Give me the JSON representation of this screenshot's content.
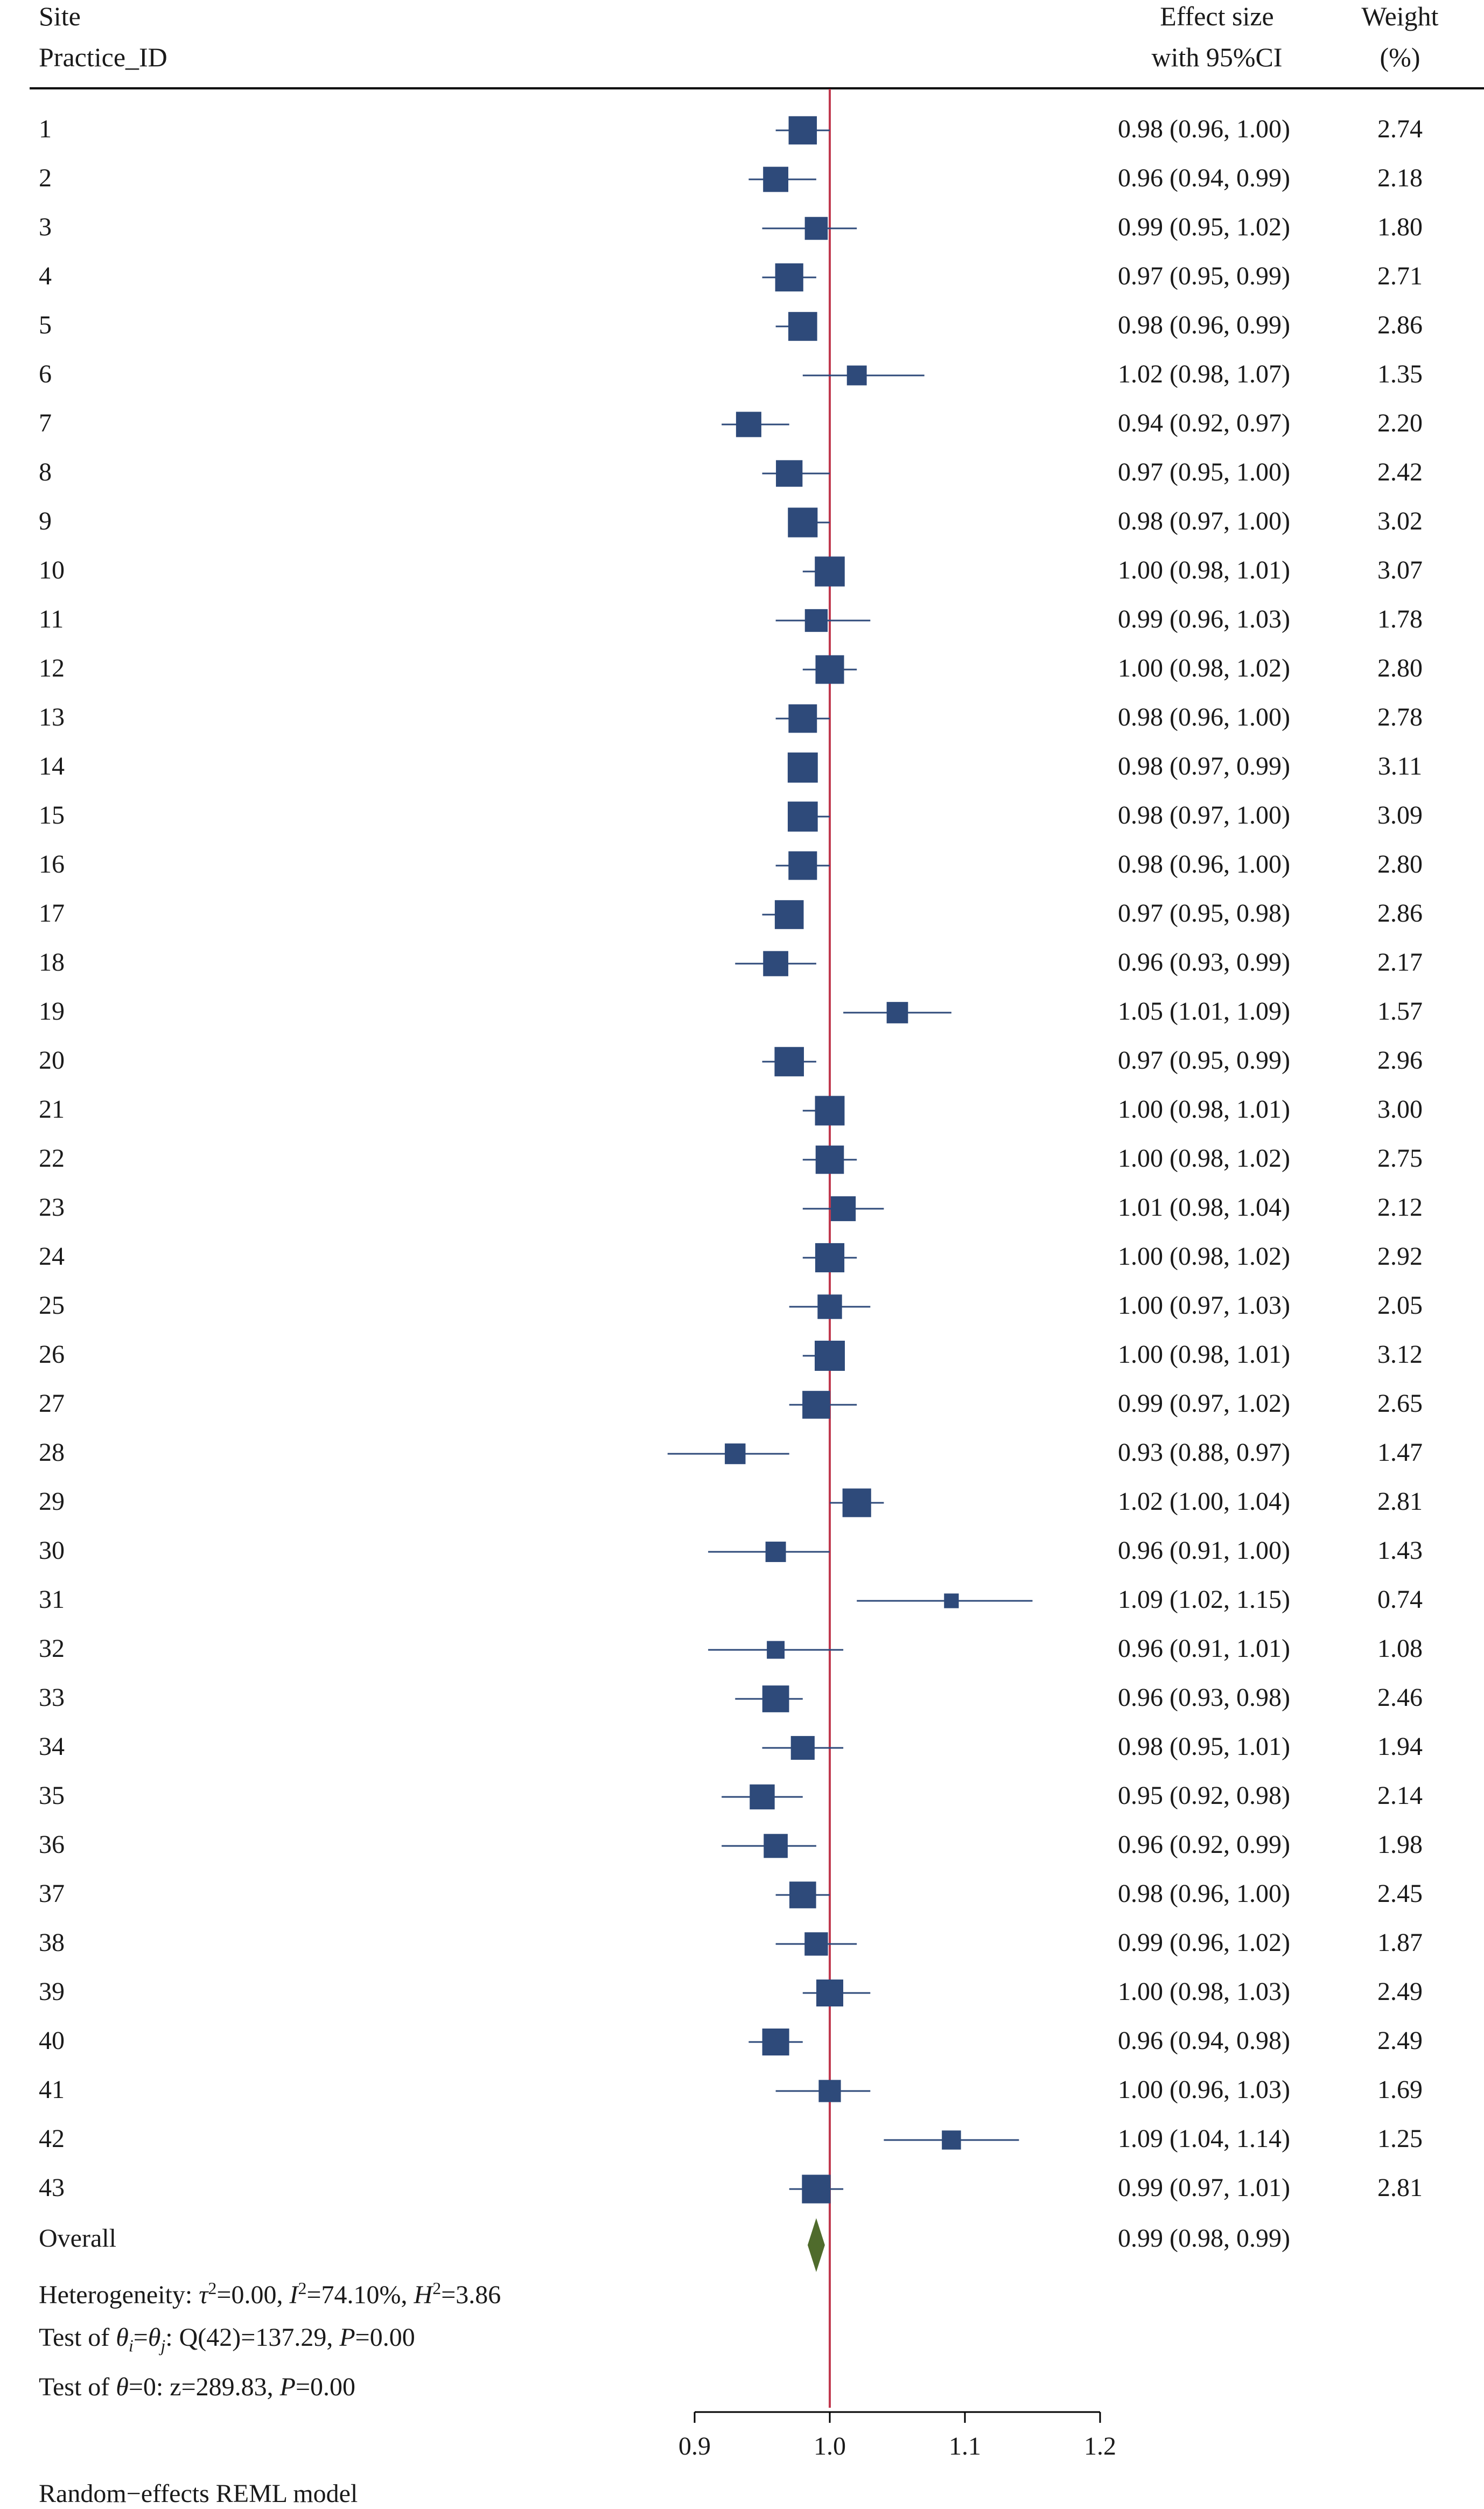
{
  "header": {
    "col1_line1": "Site",
    "col1_line2": "Practice_ID",
    "col2_line1": "Effect size",
    "col2_line2": "with 95%CI",
    "col3_line1": "Weight",
    "col3_line2": "(%)"
  },
  "colors": {
    "marker": "#2e4a7a",
    "diamond": "#4f6b2c",
    "reference_line": "#c0394f"
  },
  "chart_data": {
    "type": "forest",
    "reference_line": 1.0,
    "x_axis": {
      "range": [
        0.9,
        1.2
      ],
      "ticks": [
        0.9,
        1.0,
        1.1,
        1.2
      ],
      "tick_labels": [
        "0.9",
        "1.0",
        "1.1",
        "1.2"
      ]
    },
    "rows": [
      {
        "id": "1",
        "es": 0.98,
        "lo": 0.96,
        "hi": 1.0,
        "label": "0.98 (0.96, 1.00)",
        "weight": 2.74,
        "weight_label": "2.74"
      },
      {
        "id": "2",
        "es": 0.96,
        "lo": 0.94,
        "hi": 0.99,
        "label": "0.96 (0.94, 0.99)",
        "weight": 2.18,
        "weight_label": "2.18"
      },
      {
        "id": "3",
        "es": 0.99,
        "lo": 0.95,
        "hi": 1.02,
        "label": "0.99 (0.95, 1.02)",
        "weight": 1.8,
        "weight_label": "1.80"
      },
      {
        "id": "4",
        "es": 0.97,
        "lo": 0.95,
        "hi": 0.99,
        "label": "0.97 (0.95, 0.99)",
        "weight": 2.71,
        "weight_label": "2.71"
      },
      {
        "id": "5",
        "es": 0.98,
        "lo": 0.96,
        "hi": 0.99,
        "label": "0.98 (0.96, 0.99)",
        "weight": 2.86,
        "weight_label": "2.86"
      },
      {
        "id": "6",
        "es": 1.02,
        "lo": 0.98,
        "hi": 1.07,
        "label": "1.02 (0.98, 1.07)",
        "weight": 1.35,
        "weight_label": "1.35"
      },
      {
        "id": "7",
        "es": 0.94,
        "lo": 0.92,
        "hi": 0.97,
        "label": "0.94 (0.92, 0.97)",
        "weight": 2.2,
        "weight_label": "2.20"
      },
      {
        "id": "8",
        "es": 0.97,
        "lo": 0.95,
        "hi": 1.0,
        "label": "0.97 (0.95, 1.00)",
        "weight": 2.42,
        "weight_label": "2.42"
      },
      {
        "id": "9",
        "es": 0.98,
        "lo": 0.97,
        "hi": 1.0,
        "label": "0.98 (0.97, 1.00)",
        "weight": 3.02,
        "weight_label": "3.02"
      },
      {
        "id": "10",
        "es": 1.0,
        "lo": 0.98,
        "hi": 1.01,
        "label": "1.00 (0.98, 1.01)",
        "weight": 3.07,
        "weight_label": "3.07"
      },
      {
        "id": "11",
        "es": 0.99,
        "lo": 0.96,
        "hi": 1.03,
        "label": "0.99 (0.96, 1.03)",
        "weight": 1.78,
        "weight_label": "1.78"
      },
      {
        "id": "12",
        "es": 1.0,
        "lo": 0.98,
        "hi": 1.02,
        "label": "1.00 (0.98, 1.02)",
        "weight": 2.8,
        "weight_label": "2.80"
      },
      {
        "id": "13",
        "es": 0.98,
        "lo": 0.96,
        "hi": 1.0,
        "label": "0.98 (0.96, 1.00)",
        "weight": 2.78,
        "weight_label": "2.78"
      },
      {
        "id": "14",
        "es": 0.98,
        "lo": 0.97,
        "hi": 0.99,
        "label": "0.98 (0.97, 0.99)",
        "weight": 3.11,
        "weight_label": "3.11"
      },
      {
        "id": "15",
        "es": 0.98,
        "lo": 0.97,
        "hi": 1.0,
        "label": "0.98 (0.97, 1.00)",
        "weight": 3.09,
        "weight_label": "3.09"
      },
      {
        "id": "16",
        "es": 0.98,
        "lo": 0.96,
        "hi": 1.0,
        "label": "0.98 (0.96, 1.00)",
        "weight": 2.8,
        "weight_label": "2.80"
      },
      {
        "id": "17",
        "es": 0.97,
        "lo": 0.95,
        "hi": 0.98,
        "label": "0.97 (0.95, 0.98)",
        "weight": 2.86,
        "weight_label": "2.86"
      },
      {
        "id": "18",
        "es": 0.96,
        "lo": 0.93,
        "hi": 0.99,
        "label": "0.96 (0.93, 0.99)",
        "weight": 2.17,
        "weight_label": "2.17"
      },
      {
        "id": "19",
        "es": 1.05,
        "lo": 1.01,
        "hi": 1.09,
        "label": "1.05 (1.01, 1.09)",
        "weight": 1.57,
        "weight_label": "1.57"
      },
      {
        "id": "20",
        "es": 0.97,
        "lo": 0.95,
        "hi": 0.99,
        "label": "0.97 (0.95, 0.99)",
        "weight": 2.96,
        "weight_label": "2.96"
      },
      {
        "id": "21",
        "es": 1.0,
        "lo": 0.98,
        "hi": 1.01,
        "label": "1.00 (0.98, 1.01)",
        "weight": 3.0,
        "weight_label": "3.00"
      },
      {
        "id": "22",
        "es": 1.0,
        "lo": 0.98,
        "hi": 1.02,
        "label": "1.00 (0.98, 1.02)",
        "weight": 2.75,
        "weight_label": "2.75"
      },
      {
        "id": "23",
        "es": 1.01,
        "lo": 0.98,
        "hi": 1.04,
        "label": "1.01 (0.98, 1.04)",
        "weight": 2.12,
        "weight_label": "2.12"
      },
      {
        "id": "24",
        "es": 1.0,
        "lo": 0.98,
        "hi": 1.02,
        "label": "1.00 (0.98, 1.02)",
        "weight": 2.92,
        "weight_label": "2.92"
      },
      {
        "id": "25",
        "es": 1.0,
        "lo": 0.97,
        "hi": 1.03,
        "label": "1.00 (0.97, 1.03)",
        "weight": 2.05,
        "weight_label": "2.05"
      },
      {
        "id": "26",
        "es": 1.0,
        "lo": 0.98,
        "hi": 1.01,
        "label": "1.00 (0.98, 1.01)",
        "weight": 3.12,
        "weight_label": "3.12"
      },
      {
        "id": "27",
        "es": 0.99,
        "lo": 0.97,
        "hi": 1.02,
        "label": "0.99 (0.97, 1.02)",
        "weight": 2.65,
        "weight_label": "2.65"
      },
      {
        "id": "28",
        "es": 0.93,
        "lo": 0.88,
        "hi": 0.97,
        "label": "0.93 (0.88, 0.97)",
        "weight": 1.47,
        "weight_label": "1.47"
      },
      {
        "id": "29",
        "es": 1.02,
        "lo": 1.0,
        "hi": 1.04,
        "label": "1.02 (1.00, 1.04)",
        "weight": 2.81,
        "weight_label": "2.81"
      },
      {
        "id": "30",
        "es": 0.96,
        "lo": 0.91,
        "hi": 1.0,
        "label": "0.96 (0.91, 1.00)",
        "weight": 1.43,
        "weight_label": "1.43"
      },
      {
        "id": "31",
        "es": 1.09,
        "lo": 1.02,
        "hi": 1.15,
        "label": "1.09 (1.02, 1.15)",
        "weight": 0.74,
        "weight_label": "0.74"
      },
      {
        "id": "32",
        "es": 0.96,
        "lo": 0.91,
        "hi": 1.01,
        "label": "0.96 (0.91, 1.01)",
        "weight": 1.08,
        "weight_label": "1.08"
      },
      {
        "id": "33",
        "es": 0.96,
        "lo": 0.93,
        "hi": 0.98,
        "label": "0.96 (0.93, 0.98)",
        "weight": 2.46,
        "weight_label": "2.46"
      },
      {
        "id": "34",
        "es": 0.98,
        "lo": 0.95,
        "hi": 1.01,
        "label": "0.98 (0.95, 1.01)",
        "weight": 1.94,
        "weight_label": "1.94"
      },
      {
        "id": "35",
        "es": 0.95,
        "lo": 0.92,
        "hi": 0.98,
        "label": "0.95 (0.92, 0.98)",
        "weight": 2.14,
        "weight_label": "2.14"
      },
      {
        "id": "36",
        "es": 0.96,
        "lo": 0.92,
        "hi": 0.99,
        "label": "0.96 (0.92, 0.99)",
        "weight": 1.98,
        "weight_label": "1.98"
      },
      {
        "id": "37",
        "es": 0.98,
        "lo": 0.96,
        "hi": 1.0,
        "label": "0.98 (0.96, 1.00)",
        "weight": 2.45,
        "weight_label": "2.45"
      },
      {
        "id": "38",
        "es": 0.99,
        "lo": 0.96,
        "hi": 1.02,
        "label": "0.99 (0.96, 1.02)",
        "weight": 1.87,
        "weight_label": "1.87"
      },
      {
        "id": "39",
        "es": 1.0,
        "lo": 0.98,
        "hi": 1.03,
        "label": "1.00 (0.98, 1.03)",
        "weight": 2.49,
        "weight_label": "2.49"
      },
      {
        "id": "40",
        "es": 0.96,
        "lo": 0.94,
        "hi": 0.98,
        "label": "0.96 (0.94, 0.98)",
        "weight": 2.49,
        "weight_label": "2.49"
      },
      {
        "id": "41",
        "es": 1.0,
        "lo": 0.96,
        "hi": 1.03,
        "label": "1.00 (0.96, 1.03)",
        "weight": 1.69,
        "weight_label": "1.69"
      },
      {
        "id": "42",
        "es": 1.09,
        "lo": 1.04,
        "hi": 1.14,
        "label": "1.09 (1.04, 1.14)",
        "weight": 1.25,
        "weight_label": "1.25"
      },
      {
        "id": "43",
        "es": 0.99,
        "lo": 0.97,
        "hi": 1.01,
        "label": "0.99 (0.97, 1.01)",
        "weight": 2.81,
        "weight_label": "2.81"
      }
    ],
    "overall": {
      "name": "Overall",
      "es": 0.99,
      "lo": 0.98,
      "hi": 0.99,
      "label": "0.99 (0.98, 0.99)"
    }
  },
  "footer": {
    "heterogeneity": {
      "prefix": "Heterogeneity: ",
      "tau_sym": "τ",
      "tau_val": "=0.00, ",
      "i_sym": "I",
      "i_val": "=74.10%, ",
      "h_sym": "H",
      "h_val": "=3.86",
      "sup": "2"
    },
    "test_theta_ij": {
      "prefix": "Test of ",
      "theta": "θ",
      "sub_i": "i",
      "eq": "=",
      "sub_j": "j",
      "q_part": ": Q(42)=137.29, ",
      "p_sym": "P",
      "p_val": "=0.00"
    },
    "test_theta0": {
      "prefix": "Test of ",
      "theta": "θ",
      "z_part": "=0: z=289.83, ",
      "p_sym": "P",
      "p_val": "=0.00"
    },
    "model": "Random−effects REML model"
  }
}
